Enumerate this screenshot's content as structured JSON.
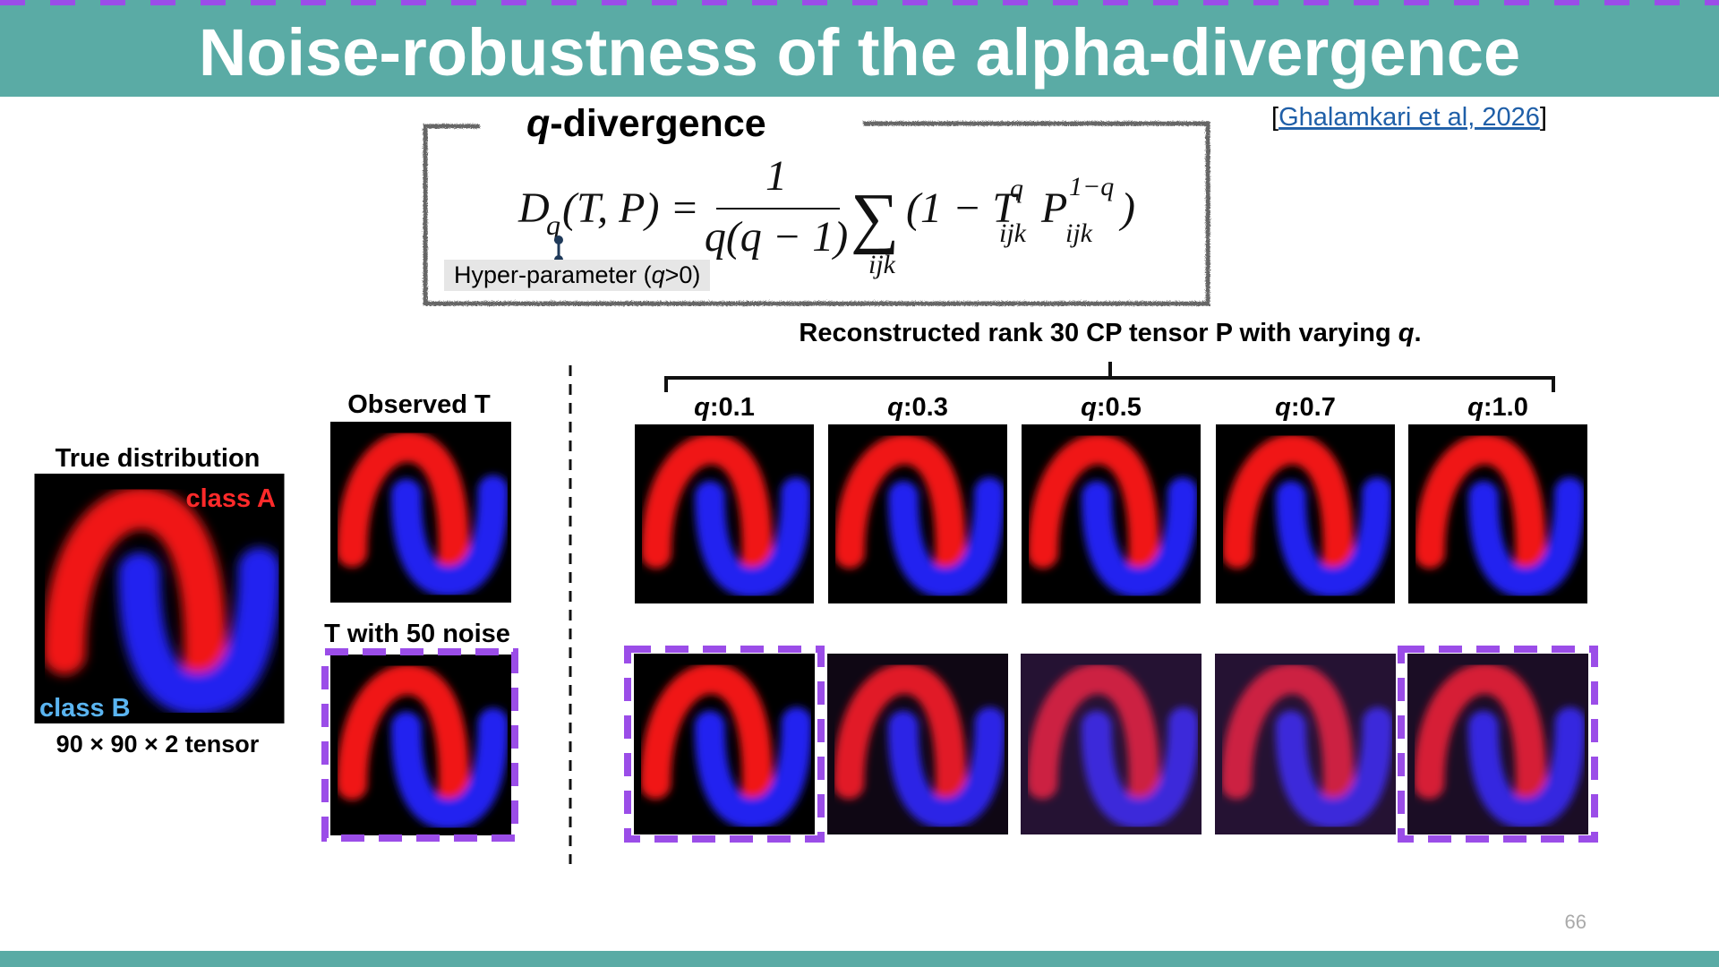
{
  "header": {
    "title": "Noise-robustness of the alpha-divergence"
  },
  "citation": {
    "open": "[",
    "link": "Ghalamkari et al, 2026",
    "close": "]"
  },
  "formula_box": {
    "title_var": "q",
    "title_rest": "-divergence",
    "formula": {
      "d": "D",
      "d_sub": "q",
      "args": "(T, P) =",
      "numerator": "1",
      "denominator": "q(q − 1)",
      "sum": "∑",
      "sum_sub": "ijk",
      "term_open": "(1 − T",
      "t_sup": "q",
      "t_sub": "ijk",
      "p": "P",
      "p_sup": "1−q",
      "p_sub": "ijk",
      "close": ")"
    },
    "hyper_label": {
      "before": "Hyper-parameter (",
      "var": "q",
      "after": ">0)"
    }
  },
  "left": {
    "true_title": "True distribution",
    "class_a": "class A",
    "class_b": "class B",
    "tensor_size": "90 × 90 × 2 tensor",
    "observed_title": "Observed T",
    "noisy_title": "T with 50 noise"
  },
  "reconstruction": {
    "title": "Reconstructed rank 30 CP tensor P with varying ",
    "title_var": "q",
    "title_end": ".",
    "q_labels": [
      {
        "var": "q",
        "value": ":0.1"
      },
      {
        "var": "q",
        "value": ":0.3"
      },
      {
        "var": "q",
        "value": ":0.5"
      },
      {
        "var": "q",
        "value": ":0.7"
      },
      {
        "var": "q",
        "value": ":1.0"
      }
    ]
  },
  "footer": {
    "page_number": "66"
  }
}
